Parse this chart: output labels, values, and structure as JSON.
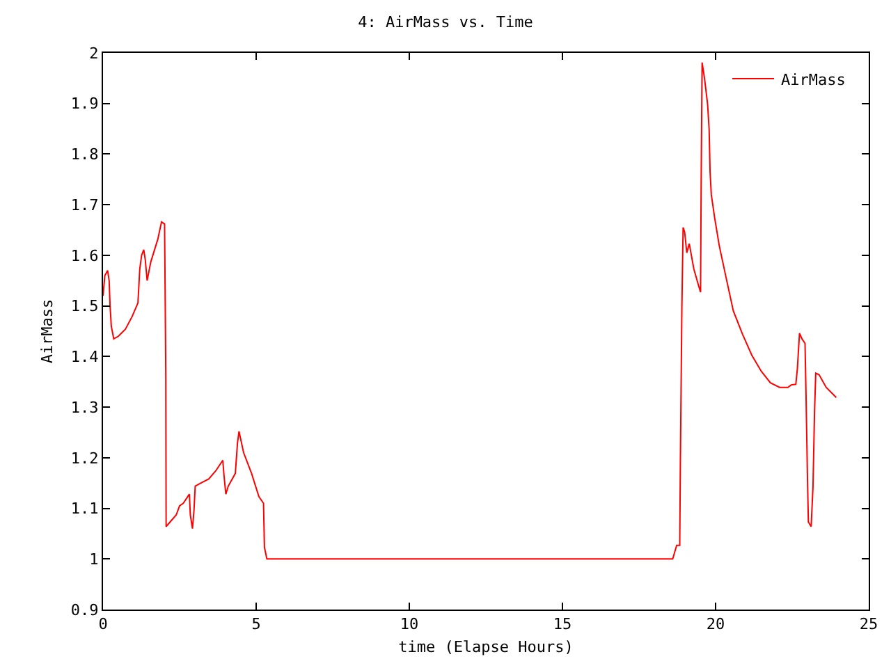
{
  "chart_data": {
    "type": "line",
    "title": "4: AirMass vs. Time",
    "xlabel": "time (Elapse Hours)",
    "ylabel": "AirMass",
    "xlim": [
      0,
      25
    ],
    "xticks": [
      0,
      5,
      10,
      15,
      20,
      25
    ],
    "ylim": [
      0.9,
      2
    ],
    "yticks": [
      0.9,
      1,
      1.1,
      1.2,
      1.3,
      1.4,
      1.5,
      1.6,
      1.7,
      1.8,
      1.9,
      2
    ],
    "grid": false,
    "legend": "top right",
    "marker": "none",
    "line_style": "solid",
    "series": [
      {
        "name": "AirMass",
        "color": "#ff0000",
        "x": [
          0,
          0.06,
          0.15,
          0.2,
          0.23,
          0.27,
          0.35,
          0.5,
          0.73,
          0.95,
          1.14,
          1.2,
          1.26,
          1.33,
          1.38,
          1.44,
          1.56,
          1.79,
          1.91,
          2.01,
          2.05,
          2.06,
          2.39,
          2.5,
          2.62,
          2.82,
          2.85,
          2.92,
          2.97,
          3.01,
          3.23,
          3.45,
          3.68,
          3.91,
          3.95,
          4.01,
          4.09,
          4.32,
          4.39,
          4.44,
          4.59,
          4.85,
          5.09,
          5.24,
          5.27,
          5.35,
          10,
          15,
          18.6,
          18.73,
          18.83,
          18.85,
          18.9,
          18.94,
          18.99,
          19.06,
          19.14,
          19.29,
          19.44,
          19.51,
          19.53,
          19.56,
          19.64,
          19.74,
          19.79,
          19.82,
          19.86,
          19.97,
          20.12,
          20.35,
          20.58,
          20.88,
          21.18,
          21.49,
          21.79,
          22.09,
          22.36,
          22.47,
          22.62,
          22.67,
          22.74,
          22.82,
          22.92,
          22.95,
          23.0,
          23.03,
          23.12,
          23.18,
          23.23,
          23.27,
          23.38,
          23.61,
          23.94
        ],
        "values": [
          1.52,
          1.56,
          1.57,
          1.55,
          1.5,
          1.46,
          1.435,
          1.44,
          1.454,
          1.479,
          1.506,
          1.573,
          1.6,
          1.611,
          1.591,
          1.55,
          1.587,
          1.632,
          1.666,
          1.662,
          1.362,
          1.064,
          1.087,
          1.105,
          1.11,
          1.128,
          1.087,
          1.06,
          1.096,
          1.144,
          1.151,
          1.158,
          1.174,
          1.195,
          1.165,
          1.128,
          1.144,
          1.169,
          1.229,
          1.252,
          1.21,
          1.169,
          1.123,
          1.11,
          1.023,
          1.0,
          1.0,
          1.0,
          1.0,
          1.027,
          1.027,
          1.188,
          1.5,
          1.655,
          1.646,
          1.605,
          1.623,
          1.573,
          1.541,
          1.527,
          1.752,
          1.981,
          1.949,
          1.898,
          1.848,
          1.765,
          1.72,
          1.674,
          1.619,
          1.554,
          1.49,
          1.444,
          1.403,
          1.371,
          1.348,
          1.339,
          1.339,
          1.344,
          1.345,
          1.376,
          1.446,
          1.435,
          1.426,
          1.334,
          1.16,
          1.073,
          1.064,
          1.142,
          1.289,
          1.367,
          1.364,
          1.339,
          1.319
        ]
      }
    ]
  }
}
